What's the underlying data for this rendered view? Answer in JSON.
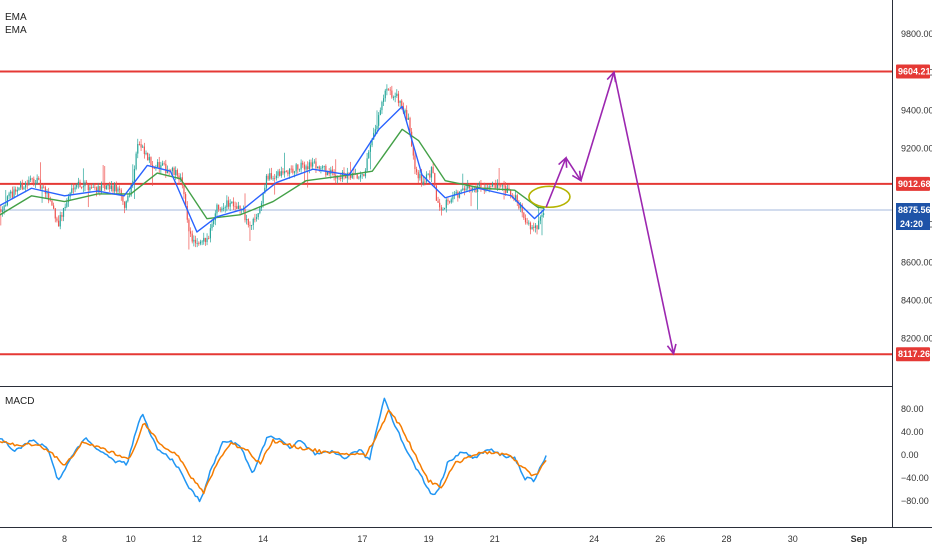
{
  "chart_data": [
    {
      "type": "candlestick",
      "indicators": [
        {
          "name": "EMA",
          "color": "#2962ff"
        },
        {
          "name": "EMA",
          "color": "#43a047"
        }
      ],
      "ylim": [
        7950,
        9980
      ],
      "y_ticks": [
        {
          "value": 9800,
          "label": "9800.00"
        },
        {
          "value": 9600,
          "label": "9600.00"
        },
        {
          "value": 9400,
          "label": "9400.00"
        },
        {
          "value": 9200,
          "label": "9200.00"
        },
        {
          "value": 8800,
          "label": "8800.00"
        },
        {
          "value": 8600,
          "label": "8600.00"
        },
        {
          "value": 8400,
          "label": "8400.00"
        },
        {
          "value": 8200,
          "label": "8200.00"
        }
      ],
      "x_ticks": [
        "8",
        "10",
        "12",
        "14",
        "17",
        "19",
        "21",
        "24",
        "26",
        "28",
        "30",
        "Sep"
      ],
      "x_tick_days": [
        8,
        10,
        12,
        14,
        17,
        19,
        21,
        24,
        26,
        28,
        30,
        32
      ],
      "xlim_days": [
        6.05,
        33.0
      ],
      "horizontal_levels": [
        {
          "value": 9604.21,
          "label": "9604.21",
          "color": "#e53935"
        },
        {
          "value": 9012.68,
          "label": "9012.68",
          "color": "#e53935"
        },
        {
          "value": 8117.26,
          "label": "8117.26",
          "color": "#e53935"
        }
      ],
      "last_price": {
        "value": 8875.56,
        "label": "8875.56",
        "countdown": "24:20",
        "color": "#1e53a8"
      },
      "ohlc_anchor_points": [
        {
          "day": 6.05,
          "price": 8880
        },
        {
          "day": 6.5,
          "price": 8980
        },
        {
          "day": 7.1,
          "price": 9040
        },
        {
          "day": 7.6,
          "price": 8920
        },
        {
          "day": 7.8,
          "price": 8800
        },
        {
          "day": 8.3,
          "price": 9020
        },
        {
          "day": 9.0,
          "price": 8990
        },
        {
          "day": 9.6,
          "price": 8990
        },
        {
          "day": 9.8,
          "price": 8890
        },
        {
          "day": 10.05,
          "price": 9020
        },
        {
          "day": 10.2,
          "price": 9230
        },
        {
          "day": 10.6,
          "price": 9120
        },
        {
          "day": 11.1,
          "price": 9090
        },
        {
          "day": 11.5,
          "price": 9050
        },
        {
          "day": 11.8,
          "price": 8740
        },
        {
          "day": 12.0,
          "price": 8680
        },
        {
          "day": 12.3,
          "price": 8720
        },
        {
          "day": 12.6,
          "price": 8890
        },
        {
          "day": 13.1,
          "price": 8920
        },
        {
          "day": 13.4,
          "price": 8860
        },
        {
          "day": 13.6,
          "price": 8780
        },
        {
          "day": 13.9,
          "price": 8880
        },
        {
          "day": 14.1,
          "price": 9040
        },
        {
          "day": 14.8,
          "price": 9080
        },
        {
          "day": 15.5,
          "price": 9120
        },
        {
          "day": 16.1,
          "price": 9060
        },
        {
          "day": 16.6,
          "price": 9050
        },
        {
          "day": 17.0,
          "price": 9040
        },
        {
          "day": 17.4,
          "price": 9300
        },
        {
          "day": 17.7,
          "price": 9500
        },
        {
          "day": 18.1,
          "price": 9460
        },
        {
          "day": 18.4,
          "price": 9330
        },
        {
          "day": 18.6,
          "price": 9100
        },
        {
          "day": 18.8,
          "price": 9020
        },
        {
          "day": 19.1,
          "price": 9080
        },
        {
          "day": 19.3,
          "price": 8880
        },
        {
          "day": 19.6,
          "price": 8930
        },
        {
          "day": 20.2,
          "price": 8990
        },
        {
          "day": 20.8,
          "price": 9000
        },
        {
          "day": 21.3,
          "price": 8980
        },
        {
          "day": 21.7,
          "price": 8920
        },
        {
          "day": 22.0,
          "price": 8800
        },
        {
          "day": 22.2,
          "price": 8760
        },
        {
          "day": 22.5,
          "price": 8890
        }
      ],
      "ema_fast": [
        {
          "day": 6.05,
          "value": 8900
        },
        {
          "day": 7.0,
          "value": 8990
        },
        {
          "day": 8.0,
          "value": 8950
        },
        {
          "day": 9.0,
          "value": 8975
        },
        {
          "day": 9.8,
          "value": 8950
        },
        {
          "day": 10.5,
          "value": 9110
        },
        {
          "day": 11.2,
          "value": 9080
        },
        {
          "day": 12.0,
          "value": 8760
        },
        {
          "day": 12.6,
          "value": 8840
        },
        {
          "day": 13.4,
          "value": 8880
        },
        {
          "day": 14.4,
          "value": 9020
        },
        {
          "day": 15.5,
          "value": 9090
        },
        {
          "day": 16.6,
          "value": 9060
        },
        {
          "day": 17.5,
          "value": 9300
        },
        {
          "day": 18.2,
          "value": 9420
        },
        {
          "day": 18.8,
          "value": 9060
        },
        {
          "day": 19.5,
          "value": 8940
        },
        {
          "day": 20.5,
          "value": 8990
        },
        {
          "day": 21.5,
          "value": 8950
        },
        {
          "day": 22.2,
          "value": 8830
        },
        {
          "day": 22.5,
          "value": 8880
        }
      ],
      "ema_slow": [
        {
          "day": 6.05,
          "value": 8850
        },
        {
          "day": 7.0,
          "value": 8950
        },
        {
          "day": 8.0,
          "value": 8920
        },
        {
          "day": 9.0,
          "value": 8960
        },
        {
          "day": 10.0,
          "value": 8960
        },
        {
          "day": 10.8,
          "value": 9070
        },
        {
          "day": 11.5,
          "value": 9040
        },
        {
          "day": 12.3,
          "value": 8830
        },
        {
          "day": 13.3,
          "value": 8850
        },
        {
          "day": 14.3,
          "value": 8920
        },
        {
          "day": 15.3,
          "value": 9030
        },
        {
          "day": 16.6,
          "value": 9060
        },
        {
          "day": 17.3,
          "value": 9080
        },
        {
          "day": 18.2,
          "value": 9300
        },
        {
          "day": 18.7,
          "value": 9240
        },
        {
          "day": 19.5,
          "value": 9030
        },
        {
          "day": 20.6,
          "value": 8990
        },
        {
          "day": 21.6,
          "value": 8980
        },
        {
          "day": 22.3,
          "value": 8890
        },
        {
          "day": 22.5,
          "value": 8885
        }
      ],
      "projection_path": [
        {
          "day": 22.55,
          "price": 8890
        },
        {
          "day": 23.15,
          "price": 9150
        },
        {
          "day": 23.6,
          "price": 9030
        },
        {
          "day": 24.6,
          "price": 9600
        },
        {
          "day": 26.4,
          "price": 8120
        }
      ],
      "projection_color": "#9c27b0",
      "highlight_ellipse": {
        "day": 22.65,
        "price": 8945,
        "rx_days": 0.62,
        "ry_price": 55,
        "color": "#b5b300"
      }
    },
    {
      "type": "line",
      "indicator": "MACD",
      "title": "MACD",
      "ylim": [
        -125,
        118
      ],
      "y_ticks": [
        {
          "value": 80,
          "label": "80.00"
        },
        {
          "value": 40,
          "label": "40.00"
        },
        {
          "value": 0,
          "label": "0.00"
        },
        {
          "value": -40,
          "label": "−40.00"
        },
        {
          "value": -80,
          "label": "−80.00"
        }
      ],
      "series": [
        {
          "color": "#2196f3",
          "points": [
            {
              "day": 6.05,
              "value": 30
            },
            {
              "day": 6.5,
              "value": 8
            },
            {
              "day": 7.0,
              "value": 25
            },
            {
              "day": 7.5,
              "value": 12
            },
            {
              "day": 7.8,
              "value": -45
            },
            {
              "day": 8.3,
              "value": 5
            },
            {
              "day": 8.6,
              "value": 30
            },
            {
              "day": 9.0,
              "value": 10
            },
            {
              "day": 9.5,
              "value": -10
            },
            {
              "day": 9.9,
              "value": -15
            },
            {
              "day": 10.2,
              "value": 50
            },
            {
              "day": 10.35,
              "value": 70
            },
            {
              "day": 10.8,
              "value": 10
            },
            {
              "day": 11.3,
              "value": -10
            },
            {
              "day": 11.8,
              "value": -60
            },
            {
              "day": 12.1,
              "value": -80
            },
            {
              "day": 12.4,
              "value": -30
            },
            {
              "day": 12.8,
              "value": 25
            },
            {
              "day": 13.3,
              "value": 18
            },
            {
              "day": 13.7,
              "value": -35
            },
            {
              "day": 14.1,
              "value": 30
            },
            {
              "day": 14.5,
              "value": 30
            },
            {
              "day": 14.8,
              "value": 10
            },
            {
              "day": 15.1,
              "value": 25
            },
            {
              "day": 15.6,
              "value": 0
            },
            {
              "day": 16.1,
              "value": 5
            },
            {
              "day": 16.5,
              "value": -5
            },
            {
              "day": 16.9,
              "value": 10
            },
            {
              "day": 17.2,
              "value": -10
            },
            {
              "day": 17.5,
              "value": 60
            },
            {
              "day": 17.65,
              "value": 100
            },
            {
              "day": 18.0,
              "value": 50
            },
            {
              "day": 18.4,
              "value": 0
            },
            {
              "day": 18.8,
              "value": -40
            },
            {
              "day": 19.1,
              "value": -70
            },
            {
              "day": 19.3,
              "value": -60
            },
            {
              "day": 19.6,
              "value": -10
            },
            {
              "day": 20.0,
              "value": 5
            },
            {
              "day": 20.4,
              "value": -5
            },
            {
              "day": 20.8,
              "value": 10
            },
            {
              "day": 21.2,
              "value": 0
            },
            {
              "day": 21.6,
              "value": -5
            },
            {
              "day": 21.9,
              "value": -40
            },
            {
              "day": 22.2,
              "value": -45
            },
            {
              "day": 22.55,
              "value": 0
            }
          ]
        },
        {
          "color": "#f57c00",
          "points": [
            {
              "day": 6.05,
              "value": 25
            },
            {
              "day": 6.6,
              "value": 15
            },
            {
              "day": 7.1,
              "value": 20
            },
            {
              "day": 7.6,
              "value": 5
            },
            {
              "day": 8.0,
              "value": -20
            },
            {
              "day": 8.5,
              "value": 20
            },
            {
              "day": 9.0,
              "value": 15
            },
            {
              "day": 9.6,
              "value": 0
            },
            {
              "day": 10.0,
              "value": -5
            },
            {
              "day": 10.4,
              "value": 55
            },
            {
              "day": 10.9,
              "value": 20
            },
            {
              "day": 11.4,
              "value": 0
            },
            {
              "day": 11.9,
              "value": -45
            },
            {
              "day": 12.2,
              "value": -65
            },
            {
              "day": 12.6,
              "value": -15
            },
            {
              "day": 13.0,
              "value": 20
            },
            {
              "day": 13.5,
              "value": 10
            },
            {
              "day": 13.9,
              "value": -15
            },
            {
              "day": 14.3,
              "value": 25
            },
            {
              "day": 14.9,
              "value": 15
            },
            {
              "day": 15.4,
              "value": 10
            },
            {
              "day": 16.0,
              "value": 3
            },
            {
              "day": 16.6,
              "value": 2
            },
            {
              "day": 17.1,
              "value": 0
            },
            {
              "day": 17.5,
              "value": 40
            },
            {
              "day": 17.8,
              "value": 80
            },
            {
              "day": 18.2,
              "value": 45
            },
            {
              "day": 18.6,
              "value": 0
            },
            {
              "day": 19.0,
              "value": -45
            },
            {
              "day": 19.4,
              "value": -55
            },
            {
              "day": 19.8,
              "value": -15
            },
            {
              "day": 20.3,
              "value": 0
            },
            {
              "day": 20.9,
              "value": 5
            },
            {
              "day": 21.4,
              "value": 0
            },
            {
              "day": 21.8,
              "value": -20
            },
            {
              "day": 22.2,
              "value": -38
            },
            {
              "day": 22.55,
              "value": -10
            }
          ]
        }
      ]
    }
  ]
}
